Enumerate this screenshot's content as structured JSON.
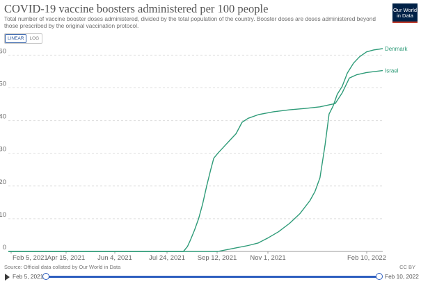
{
  "header": {
    "title": "COVID-19 vaccine boosters administered per 100 people",
    "subtitle": "Total number of vaccine booster doses administered, divided by the total population of the country. Booster doses are doses administered beyond those prescribed by the original vaccination protocol.",
    "logo_text": "Our World in Data"
  },
  "controls": {
    "linear_label": "LINEAR",
    "log_label": "LOG",
    "active_scale": "linear"
  },
  "footer": {
    "source": "Source: Official data collated by Our World in Data",
    "license": "CC BY"
  },
  "timeline": {
    "start_label": "Feb 5, 2021",
    "end_label": "Feb 10, 2022"
  },
  "colors": {
    "series": "#2e9b78",
    "grid": "#dddddd",
    "axis": "#999999",
    "text": "#666666"
  },
  "chart_data": {
    "type": "line",
    "x_ticks": [
      "Feb 5, 2021",
      "Apr 15, 2021",
      "Jun 4, 2021",
      "Jul 24, 2021",
      "Sep 12, 2021",
      "Nov 1, 2021",
      "Feb 10, 2022"
    ],
    "xlim": [
      "2021-02-05",
      "2022-02-10"
    ],
    "ylim": [
      0,
      62
    ],
    "y_ticks": [
      0,
      10,
      20,
      30,
      40,
      50,
      60
    ],
    "grid": "horizontal dashed",
    "series": [
      {
        "name": "Denmark",
        "color": "#2e9b78",
        "points": [
          [
            "2021-02-05",
            0
          ],
          [
            "2021-08-31",
            0
          ],
          [
            "2021-09-10",
            0.6
          ],
          [
            "2021-09-20",
            1.2
          ],
          [
            "2021-09-30",
            1.8
          ],
          [
            "2021-10-10",
            2.6
          ],
          [
            "2021-10-20",
            4.2
          ],
          [
            "2021-10-30",
            6.0
          ],
          [
            "2021-11-10",
            8.6
          ],
          [
            "2021-11-20",
            11.5
          ],
          [
            "2021-11-30",
            15.5
          ],
          [
            "2021-12-05",
            18.3
          ],
          [
            "2021-12-10",
            22.5
          ],
          [
            "2021-12-15",
            32.5
          ],
          [
            "2021-12-19",
            42.0
          ],
          [
            "2021-12-23",
            44.5
          ],
          [
            "2021-12-27",
            48.0
          ],
          [
            "2022-01-01",
            50.5
          ],
          [
            "2022-01-06",
            54.5
          ],
          [
            "2022-01-12",
            57.5
          ],
          [
            "2022-01-18",
            59.5
          ],
          [
            "2022-01-25",
            61.0
          ],
          [
            "2022-02-01",
            61.6
          ],
          [
            "2022-02-10",
            62.0
          ]
        ]
      },
      {
        "name": "Israel",
        "color": "#2e9b78",
        "points": [
          [
            "2021-02-05",
            0
          ],
          [
            "2021-07-28",
            0
          ],
          [
            "2021-08-01",
            1.5
          ],
          [
            "2021-08-04",
            3.5
          ],
          [
            "2021-08-08",
            6.5
          ],
          [
            "2021-08-12",
            10.0
          ],
          [
            "2021-08-16",
            14.5
          ],
          [
            "2021-08-20",
            20.0
          ],
          [
            "2021-08-24",
            25.0
          ],
          [
            "2021-08-27",
            28.5
          ],
          [
            "2021-08-31",
            30.0
          ],
          [
            "2021-09-06",
            32.0
          ],
          [
            "2021-09-12",
            34.0
          ],
          [
            "2021-09-18",
            36.0
          ],
          [
            "2021-09-24",
            39.5
          ],
          [
            "2021-09-30",
            40.7
          ],
          [
            "2021-10-10",
            41.8
          ],
          [
            "2021-10-25",
            42.7
          ],
          [
            "2021-11-10",
            43.3
          ],
          [
            "2021-11-25",
            43.7
          ],
          [
            "2021-12-10",
            44.2
          ],
          [
            "2021-12-25",
            45.2
          ],
          [
            "2022-01-01",
            48.5
          ],
          [
            "2022-01-08",
            53.0
          ],
          [
            "2022-01-15",
            54.0
          ],
          [
            "2022-01-25",
            54.7
          ],
          [
            "2022-02-10",
            55.3
          ]
        ]
      }
    ]
  }
}
